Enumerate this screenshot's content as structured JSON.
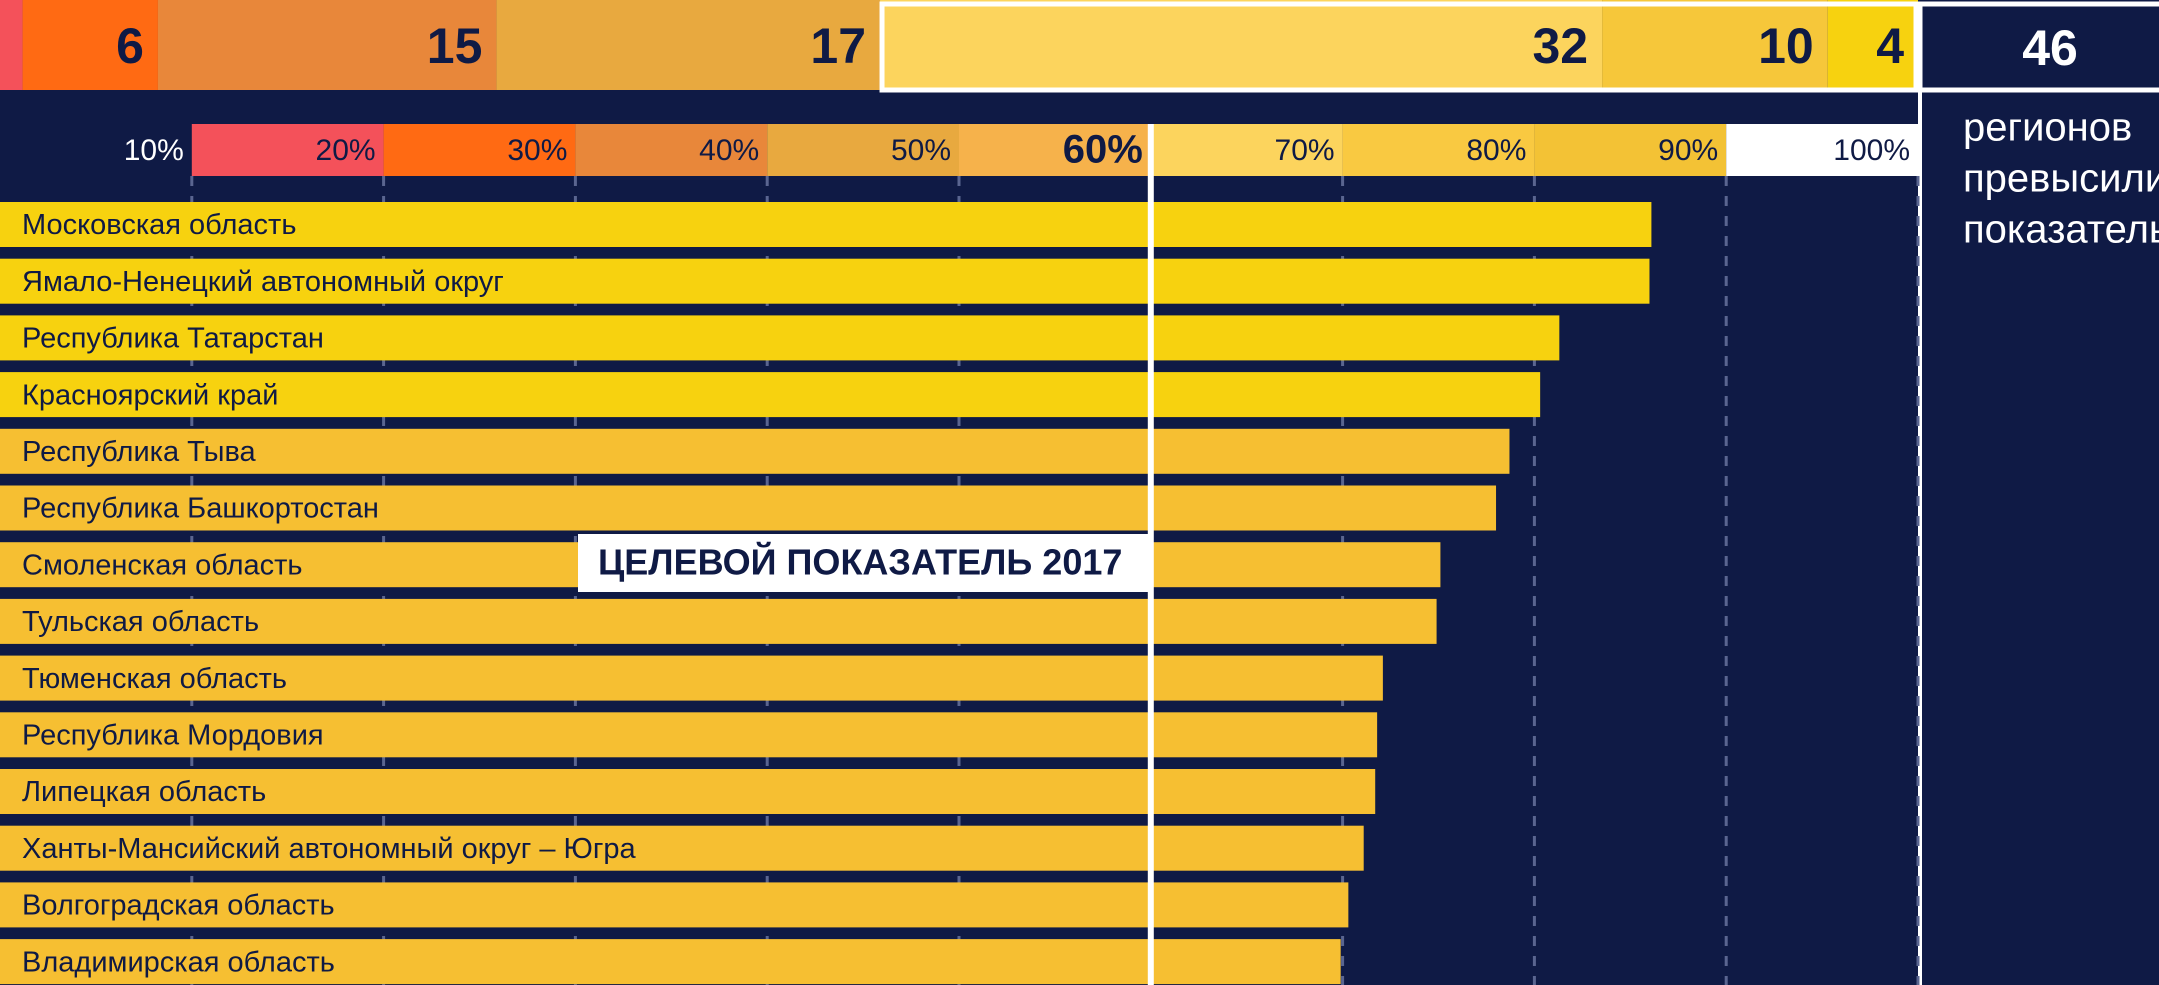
{
  "summary": {
    "counts": [
      1,
      6,
      15,
      17,
      32,
      10,
      4
    ],
    "colors": [
      "#f4515a",
      "#ff6a13",
      "#e8873a",
      "#e8a93f",
      "#fcd45d",
      "#f6c73a",
      "#f7d20f"
    ],
    "total": 46,
    "total_caption": [
      "регионов",
      "превысили",
      "показатель"
    ]
  },
  "chart_data": {
    "type": "bar",
    "orientation": "horizontal",
    "categories": [
      "Московская область",
      "Ямало-Ненецкий автономный округ",
      "Республика Татарстан",
      "Красноярский край",
      "Республика Тыва",
      "Республика Башкортостан",
      "Смоленская область",
      "Тульская область",
      "Тюменская область",
      "Республика Мордовия",
      "Липецкая область",
      "Ханты-Мансийский автономный округ – Югра",
      "Волгоградская область",
      "Владимирская область"
    ],
    "values": [
      86.1,
      86.0,
      81.3,
      80.3,
      78.7,
      78.0,
      75.1,
      74.9,
      72.1,
      71.8,
      71.7,
      71.1,
      70.3,
      69.9
    ],
    "colors": [
      "#f7d20f",
      "#f7d20f",
      "#f7d20f",
      "#f7d20f",
      "#f6bf32",
      "#f6bf32",
      "#f6bf32",
      "#f6bf32",
      "#f6bf32",
      "#f6bf32",
      "#f6bf32",
      "#f6bf32",
      "#f6bf32",
      "#f6bf32"
    ],
    "xlim": [
      0,
      100
    ],
    "xticks": [
      {
        "value": 10,
        "label": "10%"
      },
      {
        "value": 20,
        "label": "20%"
      },
      {
        "value": 30,
        "label": "30%"
      },
      {
        "value": 40,
        "label": "40%"
      },
      {
        "value": 50,
        "label": "50%"
      },
      {
        "value": 60,
        "label": "60%"
      },
      {
        "value": 70,
        "label": "70%"
      },
      {
        "value": 80,
        "label": "80%"
      },
      {
        "value": 90,
        "label": "90%"
      },
      {
        "value": 100,
        "label": "100%"
      }
    ],
    "band_colors": [
      "#0f1a45",
      "#f4515a",
      "#ff6a13",
      "#e8873a",
      "#e8a93f",
      "#f6b24b",
      "#fcd45d",
      "#f9c941",
      "#f3c235",
      "#ffffff"
    ],
    "grid": true,
    "target": {
      "value": 60,
      "label": "ЦЕЛЕВОЙ ПОКАЗАТЕЛЬ 2017"
    }
  }
}
